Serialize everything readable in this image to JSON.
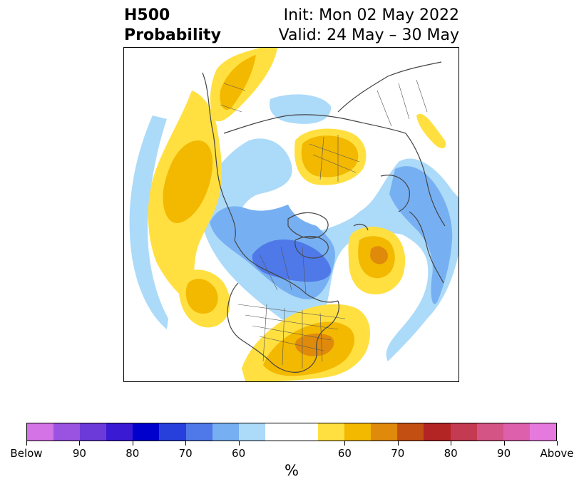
{
  "header": {
    "title_line1": "H500",
    "title_line2": "Probability",
    "init_text": "Init: Mon 02 May 2022",
    "valid_text": "Valid: 24 May – 30 May"
  },
  "colorbar": {
    "unit": "%",
    "colors": [
      "#d473e6",
      "#9a53e0",
      "#6b3ad8",
      "#3a1ad2",
      "#0000cc",
      "#2740dc",
      "#4f78e8",
      "#77b0f2",
      "#acdaf9",
      "#ffffff",
      "#ffffff",
      "#ffe040",
      "#f3b800",
      "#df8a0b",
      "#c44f12",
      "#b32425",
      "#c43a50",
      "#d35485",
      "#dd60ac",
      "#e679dd"
    ],
    "labels": [
      "Below",
      "90",
      "80",
      "70",
      "60",
      "60",
      "70",
      "80",
      "90",
      "Above"
    ]
  },
  "map": {
    "projection": "north-polar-stereographic",
    "palette": {
      "light_blue": "#acdaf9",
      "mid_blue": "#77b0f2",
      "blue": "#4f78e8",
      "light_yellow": "#ffe040",
      "yellow": "#f3b800",
      "orange": "#df8a0b",
      "coastline": "#444444"
    }
  }
}
